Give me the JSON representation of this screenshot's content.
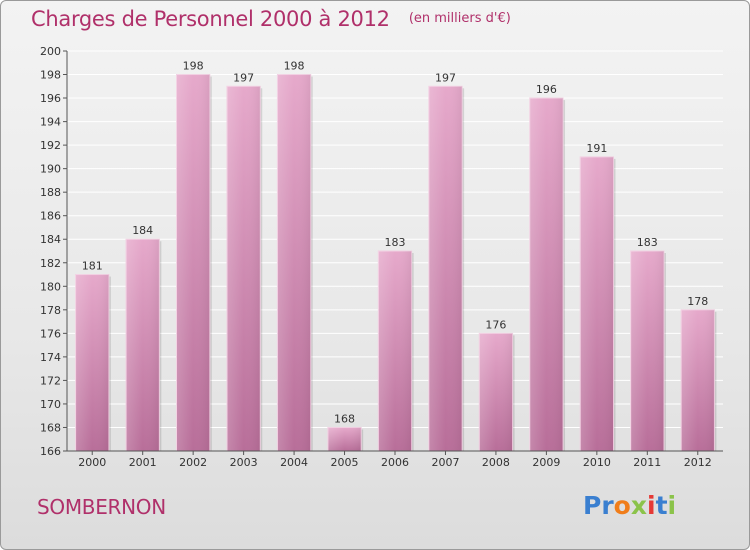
{
  "title": "Charges de Personnel 2000 à 2012",
  "unit": "(en milliers d'€)",
  "commune": "SOMBERNON",
  "logo": {
    "text": "Proxiti",
    "letters": [
      {
        "ch": "P",
        "color": "#3a7fd0"
      },
      {
        "ch": "r",
        "color": "#3a7fd0"
      },
      {
        "ch": "o",
        "color": "#f07d1a"
      },
      {
        "ch": "x",
        "color": "#8bc34a"
      },
      {
        "ch": "i",
        "color": "#e53935"
      },
      {
        "ch": "t",
        "color": "#3a7fd0"
      },
      {
        "ch": "i",
        "color": "#8bc34a"
      }
    ]
  },
  "colors": {
    "bar_top": "#e6a9cb",
    "bar_bottom": "#b86e99",
    "text_accent": "#b0306a",
    "grid": "#ffffff",
    "axis": "#555555"
  },
  "chart_data": {
    "type": "bar",
    "categories": [
      "2000",
      "2001",
      "2002",
      "2003",
      "2004",
      "2005",
      "2006",
      "2007",
      "2008",
      "2009",
      "2010",
      "2011",
      "2012"
    ],
    "values": [
      181,
      184,
      198,
      197,
      198,
      168,
      183,
      197,
      176,
      196,
      191,
      183,
      178
    ],
    "ylim": [
      166,
      200
    ],
    "yticks": [
      166,
      168,
      170,
      172,
      174,
      176,
      178,
      180,
      182,
      184,
      186,
      188,
      190,
      192,
      194,
      196,
      198,
      200
    ],
    "grid": true,
    "xlabel": "",
    "ylabel": ""
  }
}
